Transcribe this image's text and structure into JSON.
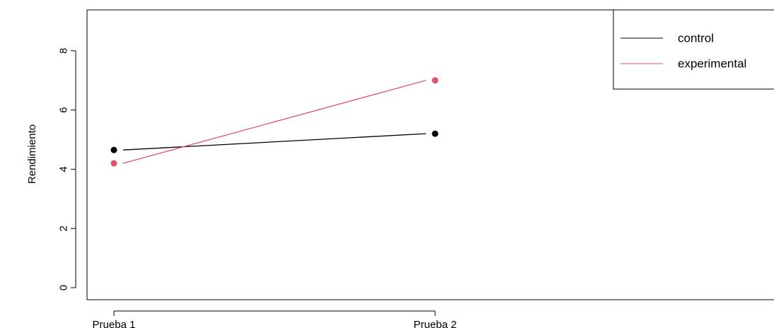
{
  "chart_data": {
    "type": "line",
    "title": "",
    "xlabel": "",
    "ylabel": "Rendimiento",
    "categories": [
      "Prueba 1",
      "Prueba 2"
    ],
    "ylim": [
      0,
      9
    ],
    "yticks": [
      "0",
      "2",
      "4",
      "6",
      "8"
    ],
    "grid": false,
    "legend_position": "top-right",
    "series": [
      {
        "name": "control",
        "values": [
          4.65,
          5.2
        ],
        "color": "#000000"
      },
      {
        "name": "experimental",
        "values": [
          4.2,
          7.0
        ],
        "color": "#DF536B"
      }
    ]
  }
}
